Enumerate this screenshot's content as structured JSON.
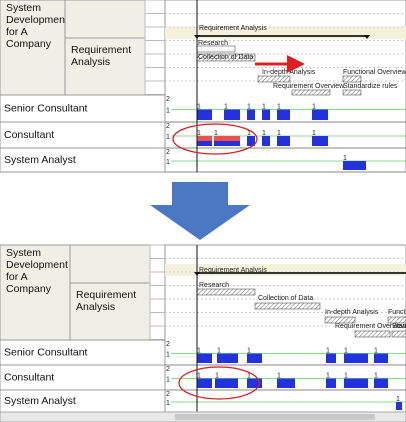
{
  "panels": [
    {
      "project": "System Development for A Company",
      "phase": "Requirement Analysis",
      "tasks": [
        {
          "label": "Requirement Analysis"
        },
        {
          "label": "Research"
        },
        {
          "label": "Collection of Data"
        },
        {
          "label": "In-depth Analysis"
        },
        {
          "label": "Functional Overview"
        },
        {
          "label": "Requirement Overview"
        },
        {
          "label": "Standardize rules"
        }
      ],
      "resources": [
        {
          "name": "Senior Consultant",
          "scale": [
            "2",
            "1"
          ],
          "loads": [
            "1",
            "1",
            "1",
            "1",
            "1",
            "1"
          ]
        },
        {
          "name": "Consultant",
          "scale": [
            "2",
            "1"
          ],
          "loads": [
            "1",
            "1",
            "1",
            "1",
            "1",
            "1"
          ]
        },
        {
          "name": "System Analyst",
          "scale": [
            "2",
            "1"
          ],
          "loads": [
            "1"
          ]
        }
      ]
    },
    {
      "project": "System Development for A Company",
      "phase": "Requirement Analysis",
      "tasks": [
        {
          "label": "Requirement Analysis"
        },
        {
          "label": "Research"
        },
        {
          "label": "Collection of Data"
        },
        {
          "label": "In-depth Analysis"
        },
        {
          "label": "Functional Overview"
        },
        {
          "label": "Requirement Overview"
        },
        {
          "label": "Standardize rules"
        }
      ],
      "resources": [
        {
          "name": "Senior Consultant",
          "scale": [
            "2",
            "1"
          ],
          "loads": [
            "1",
            "1",
            "1",
            "1",
            "1",
            "1"
          ]
        },
        {
          "name": "Consultant",
          "scale": [
            "2",
            "1"
          ],
          "loads": [
            "1",
            "1",
            "1",
            "1",
            "1",
            "1",
            "1"
          ]
        },
        {
          "name": "System Analyst",
          "scale": [
            "2",
            "1"
          ],
          "loads": [
            "1"
          ]
        }
      ]
    }
  ]
}
